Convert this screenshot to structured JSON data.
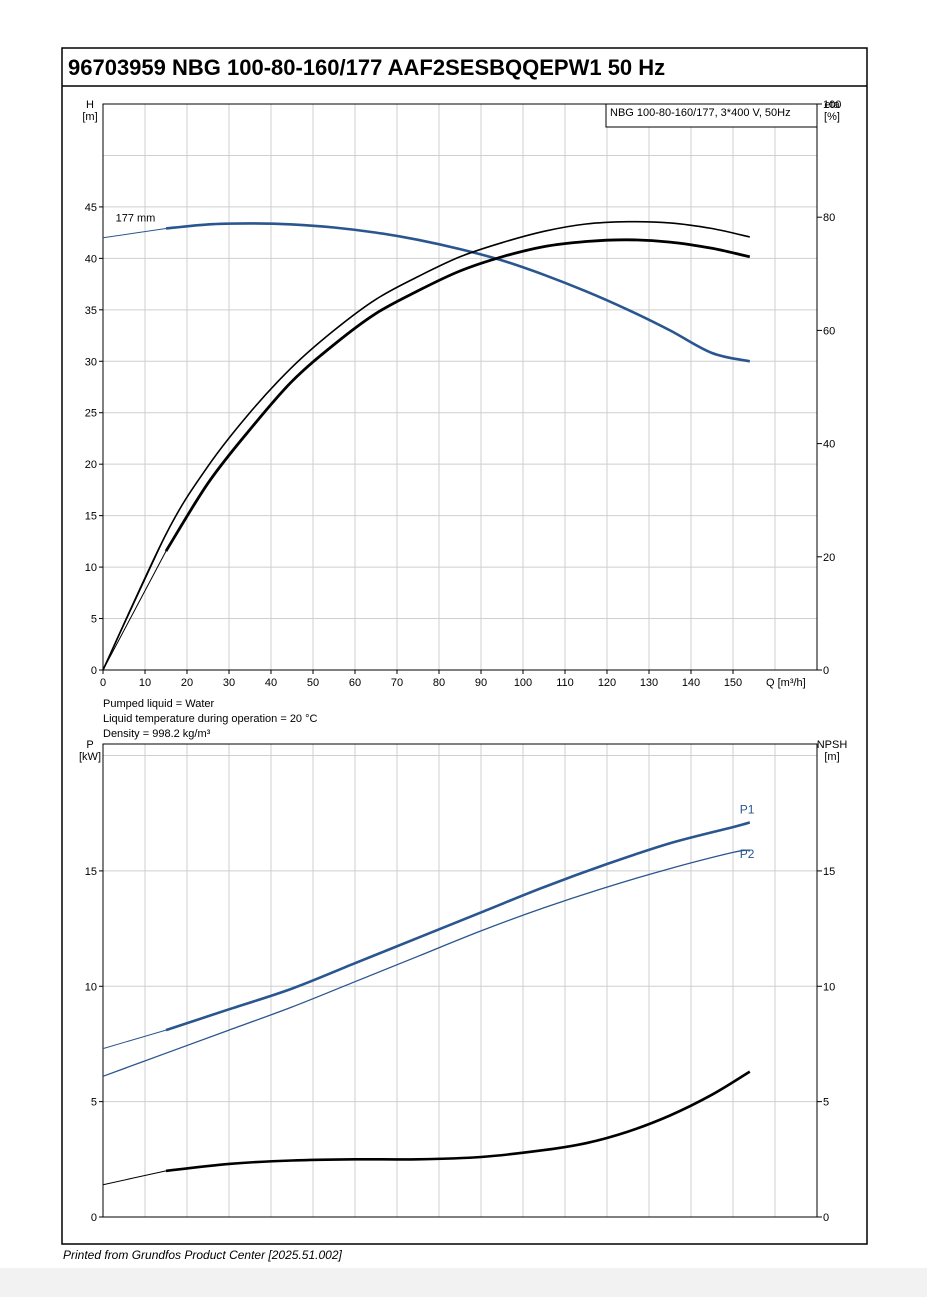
{
  "title": "96703959 NBG 100-80-160/177 AAF2SESBQQEPW1 50 Hz",
  "footer": "Printed from Grundfos Product Center [2025.51.002]",
  "colors": {
    "blue": "#2a568f",
    "black": "#000000",
    "grid": "#cfcfcf"
  },
  "chart_data": [
    {
      "type": "line",
      "legend_box": "NBG 100-80-160/177, 3*400 V, 50Hz",
      "y_left_label": [
        "H",
        "[m]"
      ],
      "y_right_label": [
        "eta",
        "[%]"
      ],
      "x_label": "Q [m³/h]",
      "x_ticks": [
        "0",
        "10",
        "20",
        "30",
        "40",
        "50",
        "60",
        "70",
        "80",
        "90",
        "100",
        "110",
        "120",
        "130",
        "140",
        "150"
      ],
      "y_left_ticks": [
        "0",
        "5",
        "10",
        "15",
        "20",
        "25",
        "30",
        "35",
        "40",
        "45"
      ],
      "y_right_ticks": [
        "0",
        "20",
        "40",
        "60",
        "80",
        "100"
      ],
      "xlim": [
        0,
        170
      ],
      "ylim_left": [
        0,
        55
      ],
      "ylim_right": [
        0,
        100
      ],
      "curve_label": "177 mm",
      "series": [
        {
          "key": "H",
          "color": "#2a568f",
          "x": [
            0,
            15,
            25,
            35,
            45,
            55,
            65,
            75,
            85,
            95,
            105,
            115,
            125,
            135,
            145,
            154
          ],
          "y": [
            42.0,
            42.9,
            43.3,
            43.4,
            43.3,
            43.0,
            42.5,
            41.8,
            40.9,
            39.8,
            38.4,
            36.8,
            35.0,
            33.0,
            30.8,
            30.0
          ]
        },
        {
          "key": "eta1",
          "color": "#000000",
          "x": [
            0,
            15,
            25,
            35,
            45,
            55,
            65,
            75,
            85,
            95,
            105,
            115,
            125,
            135,
            145,
            154
          ],
          "y": [
            0,
            24,
            36,
            45.5,
            53.5,
            60,
            65.5,
            69.5,
            73,
            75.5,
            77.5,
            78.8,
            79.2,
            79,
            78,
            76.5
          ]
        },
        {
          "key": "eta2",
          "color": "#000000",
          "x": [
            0,
            15,
            25,
            35,
            45,
            55,
            65,
            75,
            85,
            95,
            105,
            115,
            125,
            135,
            145,
            154
          ],
          "y": [
            0,
            21,
            33,
            42.5,
            51,
            57.5,
            63,
            67,
            70.5,
            73,
            74.8,
            75.7,
            76,
            75.6,
            74.5,
            73
          ]
        }
      ]
    },
    {
      "type": "line",
      "liquid_info": [
        "Pumped liquid = Water",
        "Liquid temperature during operation = 20 °C",
        "Density = 998.2 kg/m³"
      ],
      "y_left_label": [
        "P",
        "[kW]"
      ],
      "y_right_label": [
        "NPSH",
        "[m]"
      ],
      "y_left_ticks": [
        "0",
        "5",
        "10",
        "15"
      ],
      "y_right_ticks": [
        "0",
        "5",
        "10",
        "15"
      ],
      "xlim": [
        0,
        170
      ],
      "ylim_left": [
        0,
        20.5
      ],
      "ylim_right": [
        0,
        20.5
      ],
      "series": [
        {
          "key": "P1",
          "name": "P1",
          "color": "#2a568f",
          "x": [
            0,
            15,
            30,
            45,
            60,
            75,
            90,
            105,
            120,
            135,
            150,
            154
          ],
          "y": [
            7.3,
            8.1,
            9.0,
            9.9,
            11.0,
            12.1,
            13.2,
            14.3,
            15.3,
            16.2,
            16.9,
            17.1
          ]
        },
        {
          "key": "P2",
          "name": "P2",
          "color": "#2a568f",
          "x": [
            0,
            15,
            30,
            45,
            60,
            75,
            90,
            105,
            120,
            135,
            150,
            154
          ],
          "y": [
            6.1,
            7.1,
            8.1,
            9.1,
            10.2,
            11.3,
            12.4,
            13.4,
            14.3,
            15.1,
            15.8,
            15.9
          ]
        },
        {
          "key": "NPSH",
          "color": "#000000",
          "x": [
            0,
            15,
            30,
            45,
            60,
            75,
            90,
            105,
            115,
            125,
            135,
            145,
            154
          ],
          "y": [
            1.4,
            2.0,
            2.3,
            2.45,
            2.5,
            2.5,
            2.6,
            2.9,
            3.2,
            3.7,
            4.4,
            5.3,
            6.3
          ]
        }
      ]
    }
  ]
}
